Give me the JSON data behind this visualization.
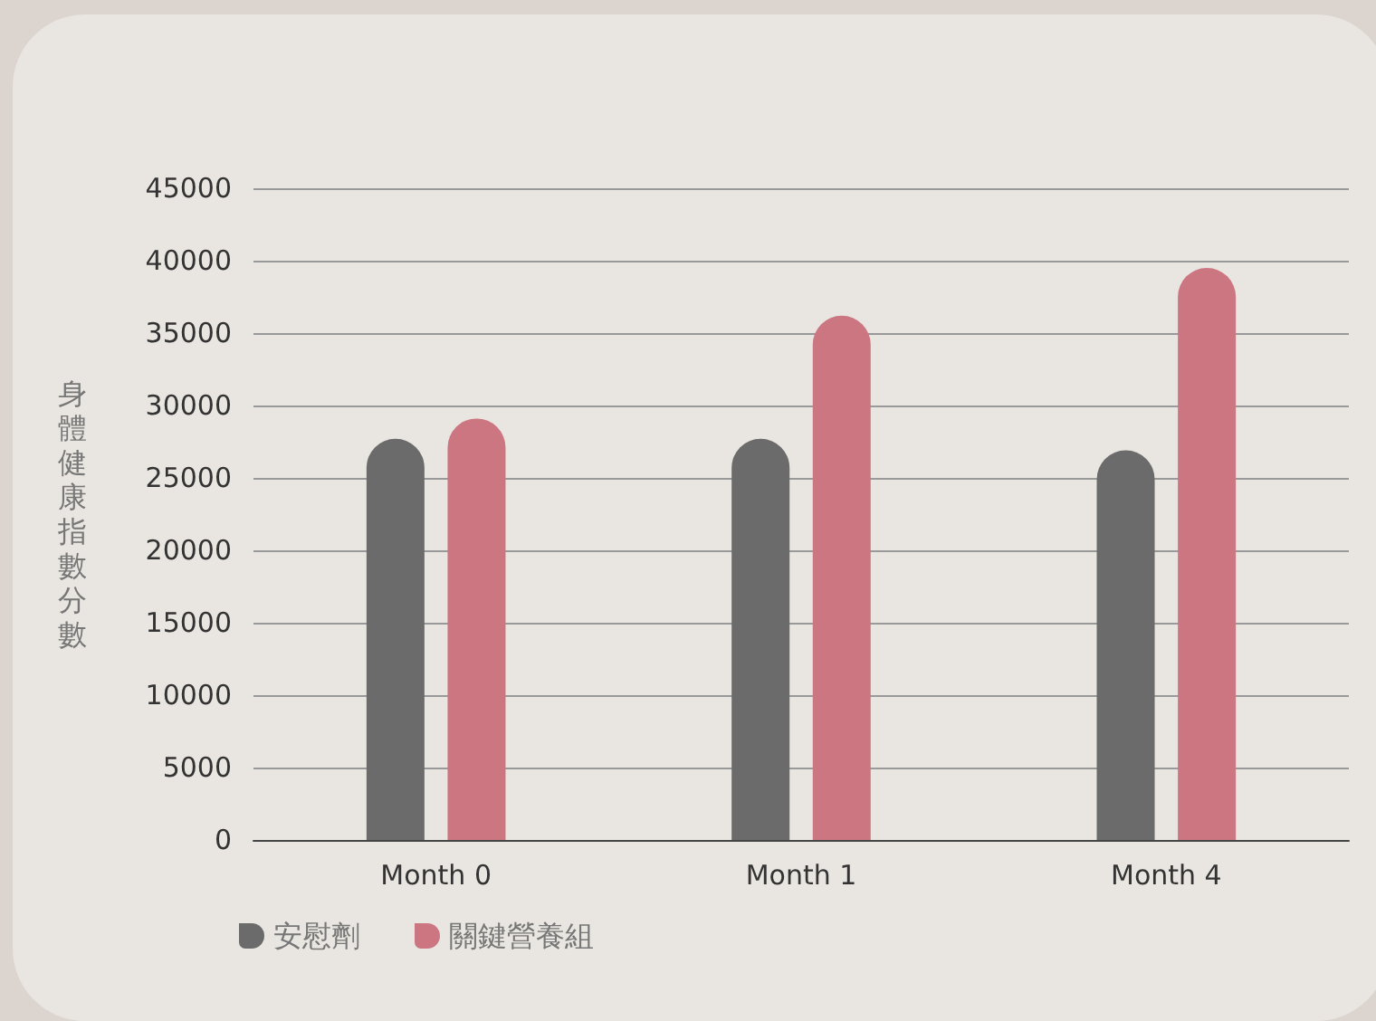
{
  "chart_data": {
    "type": "bar",
    "ylabel": "身體健康指數分數",
    "categories": [
      "Month 0",
      "Month 1",
      "Month 4"
    ],
    "series": [
      {
        "name": "安慰劑",
        "color": "#6b6b6b",
        "values": [
          27700,
          27700,
          26900
        ]
      },
      {
        "name": "關鍵營養組",
        "color": "#cc7682",
        "values": [
          29100,
          36200,
          39500
        ]
      }
    ],
    "ylim": [
      0,
      45000
    ],
    "yticks": [
      0,
      5000,
      10000,
      15000,
      20000,
      25000,
      30000,
      35000,
      40000,
      45000
    ],
    "grid": "y",
    "legend": "bottom left"
  }
}
